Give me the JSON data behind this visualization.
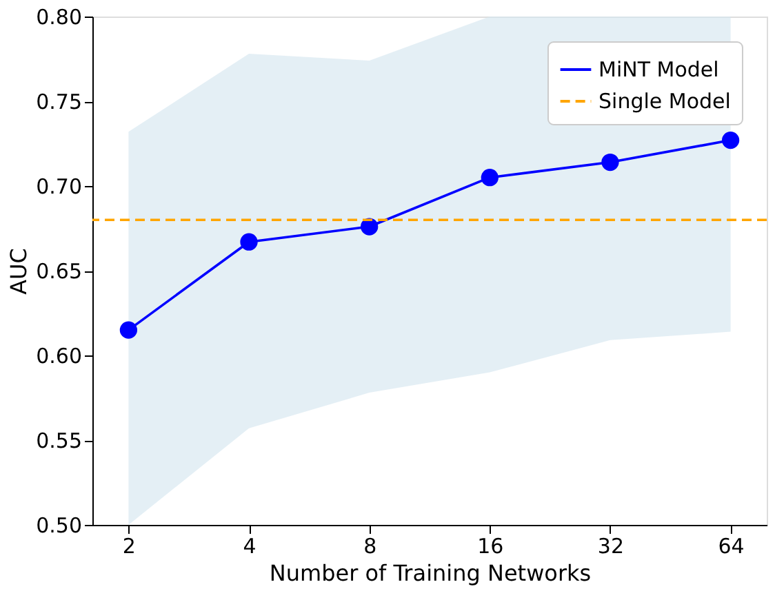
{
  "chart_data": {
    "type": "line",
    "xlabel": "Number of Training Networks",
    "ylabel": "AUC",
    "categories": [
      "2",
      "4",
      "8",
      "16",
      "32",
      "64"
    ],
    "series": [
      {
        "name": "MiNT Model",
        "color": "#0000ff",
        "values": [
          0.615,
          0.667,
          0.676,
          0.705,
          0.714,
          0.727
        ],
        "lower": [
          0.5,
          0.557,
          0.578,
          0.59,
          0.609,
          0.614
        ],
        "upper": [
          0.732,
          0.778,
          0.774,
          0.8,
          0.8,
          0.8
        ],
        "marker": "circle",
        "line_style": "solid"
      }
    ],
    "ref_lines": [
      {
        "axis": "y",
        "value": 0.68,
        "label": "Single Model",
        "color": "#ffa500",
        "line_style": "dashed"
      }
    ],
    "ylim": [
      0.5,
      0.8
    ],
    "yticks": [
      {
        "value": 0.5,
        "label": "0.50"
      },
      0.55,
      {
        "value": 0.6,
        "label": "0.60"
      },
      0.65,
      {
        "value": 0.7,
        "label": "0.70"
      },
      0.75,
      {
        "value": 0.8,
        "label": "0.80"
      }
    ],
    "grid": false,
    "legend": "top right"
  }
}
